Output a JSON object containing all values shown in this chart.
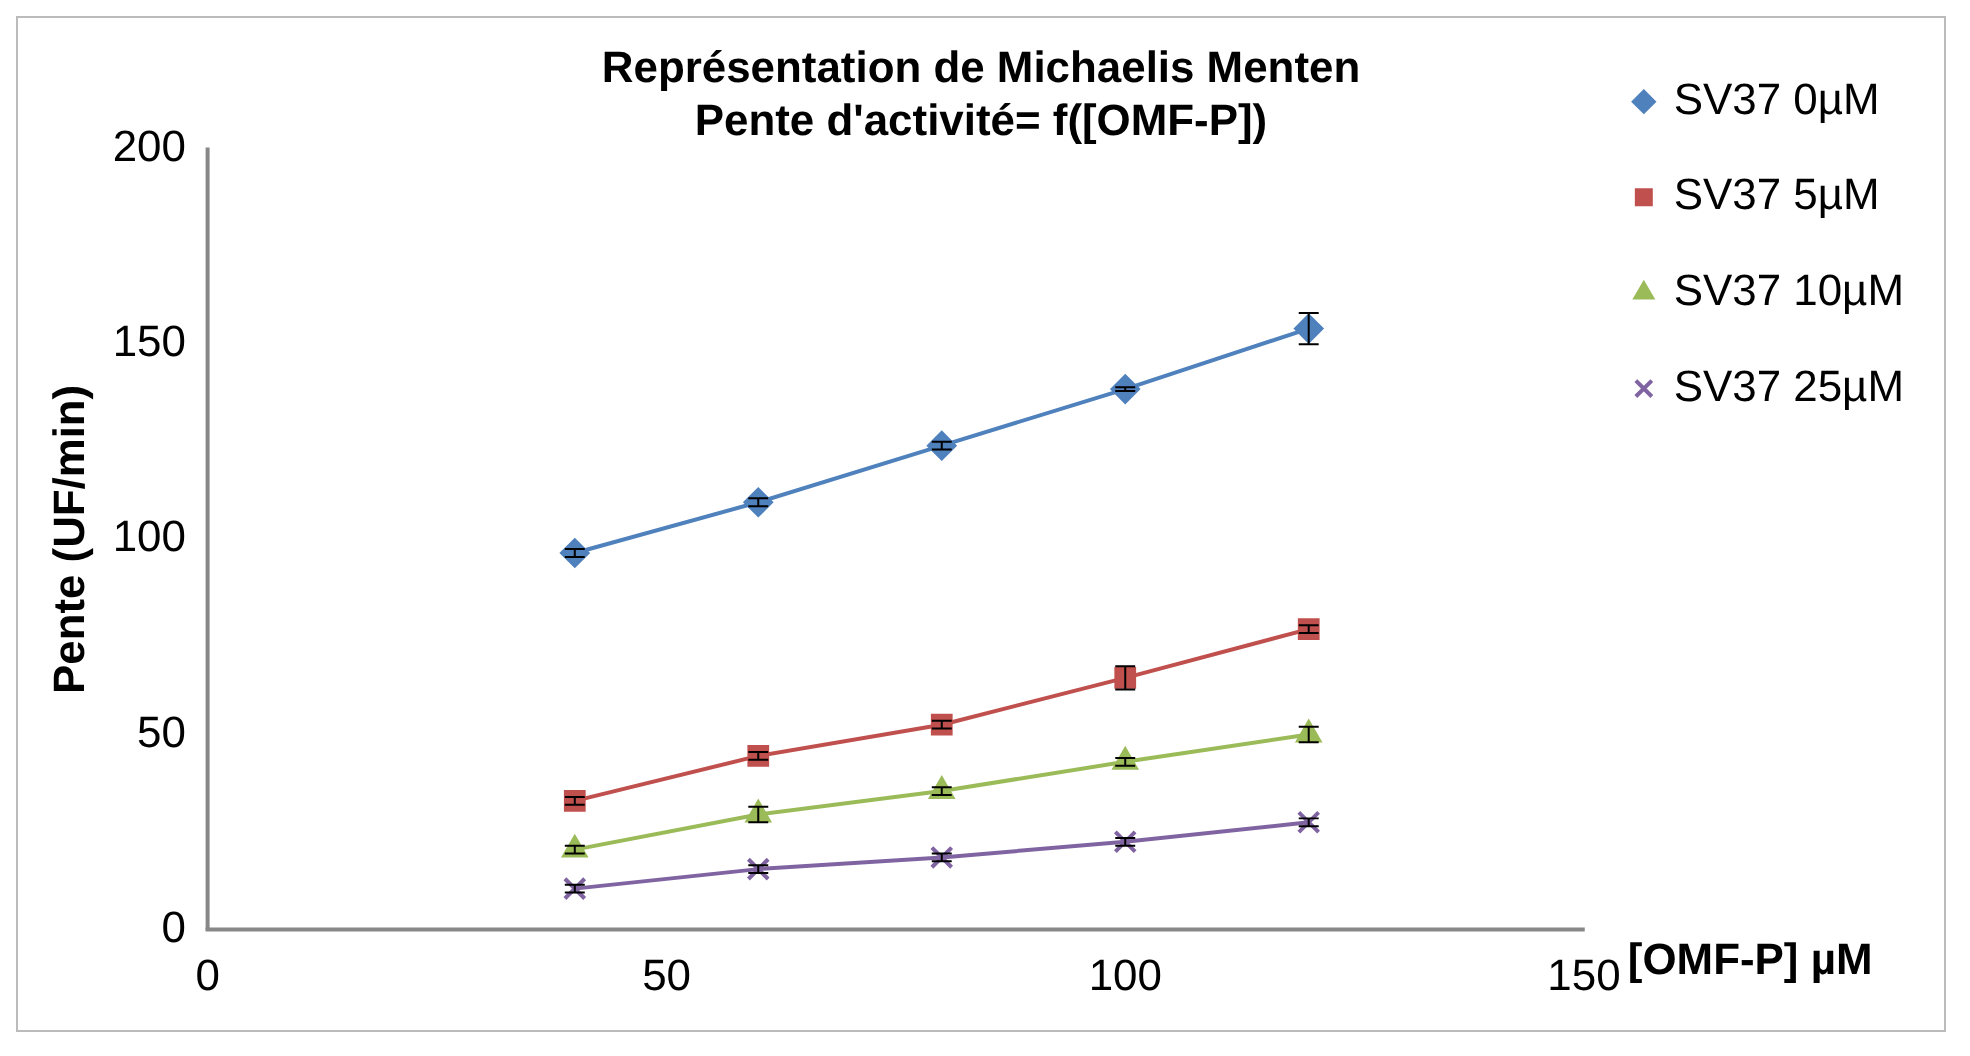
{
  "chart_data": {
    "type": "line",
    "title": "Représentation de Michaelis Menten\nPente d'activité= f([OMF-P])",
    "xlabel": "[OMF-P] µM",
    "ylabel": "Pente (UF/min)",
    "x": [
      40,
      60,
      80,
      100,
      120
    ],
    "series": [
      {
        "name": "SV37 0µM",
        "color": "#4f81bd",
        "marker": "diamond",
        "values": [
          96.5,
          109.5,
          124,
          138.5,
          154
        ],
        "errors": [
          1,
          1,
          1,
          0.5,
          4
        ]
      },
      {
        "name": "SV37 5µM",
        "color": "#c0504d",
        "marker": "square",
        "values": [
          33,
          44.5,
          52.5,
          64.5,
          77
        ],
        "errors": [
          1,
          1,
          1,
          3,
          1
        ]
      },
      {
        "name": "SV37 10µM",
        "color": "#9bbb59",
        "marker": "triangle",
        "values": [
          20.5,
          29.5,
          35.5,
          43,
          50
        ],
        "errors": [
          1,
          2,
          1,
          1,
          2
        ]
      },
      {
        "name": "SV37 25µM",
        "color": "#8064a2",
        "marker": "cross",
        "values": [
          10.5,
          15.5,
          18.5,
          22.5,
          27.5
        ],
        "errors": [
          1,
          1,
          1,
          1,
          1
        ]
      }
    ],
    "xlim": [
      0,
      150
    ],
    "xticks": [
      0,
      50,
      100,
      150
    ],
    "ylim": [
      0,
      200
    ],
    "yticks": [
      0,
      50,
      100,
      150,
      200
    ],
    "grid": false,
    "legend": "right",
    "line_style": "solid"
  }
}
